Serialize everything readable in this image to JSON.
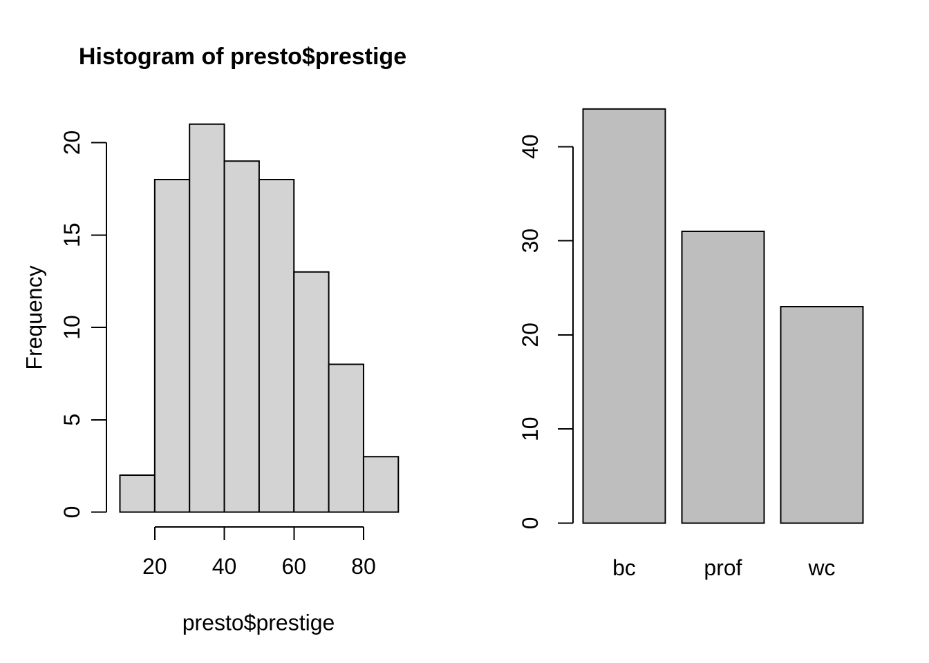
{
  "figure": {
    "background": "#ffffff",
    "text_color": "#000000",
    "layout": "two R base-graphics panels side by side"
  },
  "chart_data": [
    {
      "type": "bar",
      "subtype": "histogram",
      "title": "Histogram of presto$prestige",
      "xlabel": "presto$prestige",
      "ylabel": "Frequency",
      "bin_edges": [
        10,
        20,
        30,
        40,
        50,
        60,
        70,
        80,
        90
      ],
      "categories": [
        "10-20",
        "20-30",
        "30-40",
        "40-50",
        "50-60",
        "60-70",
        "70-80",
        "80-90"
      ],
      "values": [
        2,
        18,
        21,
        19,
        18,
        13,
        8,
        3
      ],
      "x_ticks": [
        20,
        40,
        60,
        80
      ],
      "y_ticks": [
        0,
        5,
        10,
        15,
        20
      ],
      "xlim": [
        10,
        90
      ],
      "ylim": [
        0,
        21
      ],
      "grid": false,
      "legend": false,
      "bar_fill": "#d3d3d3",
      "bar_border": "#000000"
    },
    {
      "type": "bar",
      "subtype": "barplot",
      "title": "",
      "xlabel": "",
      "ylabel": "",
      "categories": [
        "bc",
        "prof",
        "wc"
      ],
      "values": [
        44,
        31,
        23
      ],
      "y_ticks": [
        0,
        10,
        20,
        30,
        40
      ],
      "ylim": [
        0,
        44
      ],
      "grid": false,
      "legend": false,
      "bar_fill": "#bebebe",
      "bar_border": "#000000"
    }
  ]
}
